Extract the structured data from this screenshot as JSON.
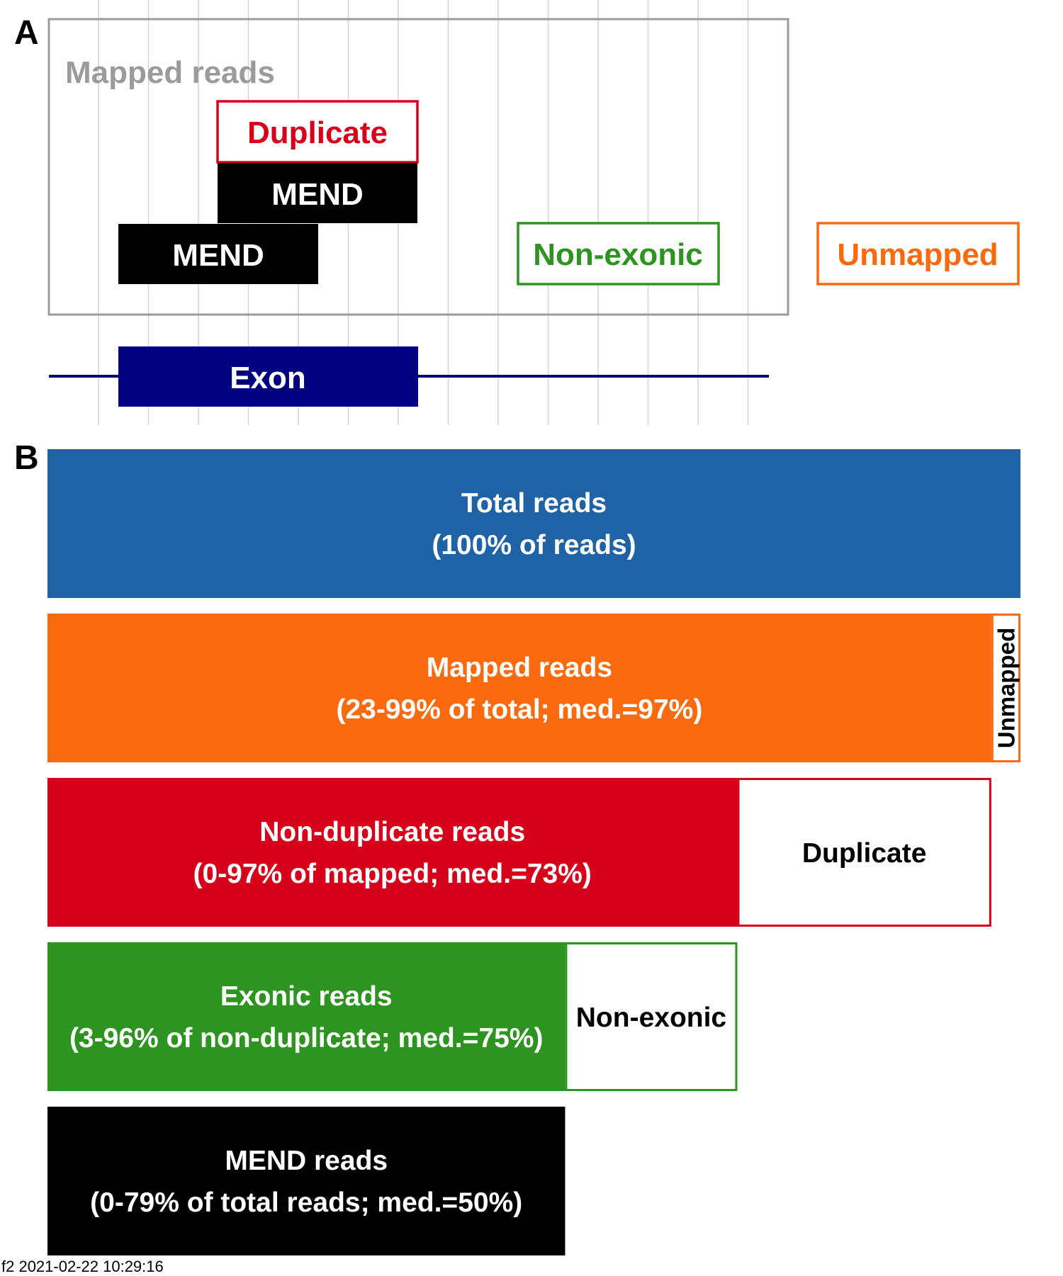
{
  "panel_a": {
    "label": "A",
    "mapped_label": "Mapped reads",
    "duplicate_label": "Duplicate",
    "mend_label_top": "MEND",
    "mend_label_bottom": "MEND",
    "nonexonic_label": "Non-exonic",
    "unmapped_label": "Unmapped",
    "exon_label": "Exon"
  },
  "panel_b": {
    "label": "B",
    "bars": [
      {
        "name": "total",
        "line1": "Total reads",
        "line2": "(100% of reads)",
        "fraction_of_total": 1.0,
        "color": "#1f63a6"
      },
      {
        "name": "mapped",
        "line1": "Mapped reads",
        "line2": "(23-99% of total; med.=97%)",
        "fraction_of_total": 0.97,
        "color": "#fb6a0e",
        "remainder": {
          "label": "Unmapped",
          "border": "#fb6a0e",
          "vertical": true
        }
      },
      {
        "name": "non-duplicate",
        "line1": "Non-duplicate reads",
        "line2": "(0-97% of mapped; med.=73%)",
        "fraction_of_total": 0.709,
        "color": "#d7001b",
        "remainder": {
          "label": "Duplicate",
          "border": "#d7001b",
          "vertical": false
        }
      },
      {
        "name": "exonic",
        "line1": "Exonic reads",
        "line2": "(3-96% of non-duplicate; med.=75%)",
        "fraction_of_total": 0.532,
        "color": "#2e9420",
        "remainder": {
          "label": "Non-exonic",
          "border": "#2e9420",
          "vertical": false
        }
      },
      {
        "name": "mend",
        "line1": "MEND reads",
        "line2": "(0-79% of total reads; med.=50%)",
        "fraction_of_total": 0.532,
        "color": "#000000"
      }
    ]
  },
  "colors": {
    "gray": "#9b9b9b",
    "duplicate": "#d7001b",
    "nonexonic": "#2e9420",
    "unmapped": "#fb6a0e",
    "exon": "#000080",
    "mend": "#000000"
  },
  "footer": {
    "text": "f2 2021-02-22 10:29:16"
  }
}
